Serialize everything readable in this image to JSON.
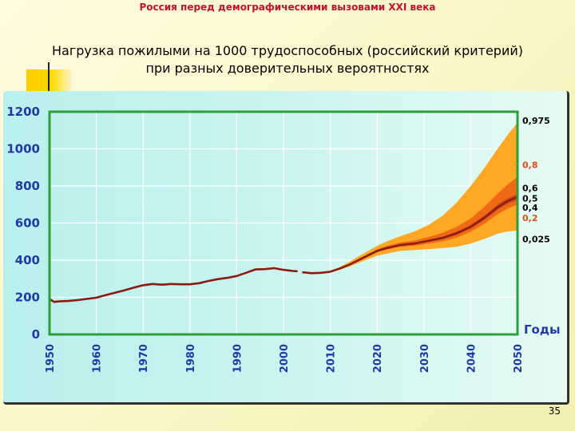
{
  "header": {
    "text": "Россия перед демографическими вызовами XXI века",
    "color": "#c8102e"
  },
  "title": {
    "line1": "Нагрузка пожилыми  на 1000 трудоспособных (российский критерий)",
    "line2": "при разных доверительных вероятностях"
  },
  "page_number": "35",
  "chart_data": {
    "type": "area",
    "xlabel": "Годы",
    "ylabel": "",
    "xlim": [
      1950,
      2050
    ],
    "ylim": [
      0,
      1200
    ],
    "yticks": [
      0,
      200,
      400,
      600,
      800,
      1000,
      1200
    ],
    "xticks": [
      1950,
      1960,
      1970,
      1980,
      1990,
      2000,
      2010,
      2020,
      2030,
      2040,
      2050
    ],
    "grid": true,
    "colors": {
      "line": "#8b1a10",
      "frame": "#2e9e3a",
      "bands": [
        "#ffa826",
        "#fb8014",
        "#f06a16",
        "#cf4a1a",
        "#8b1e10"
      ]
    },
    "historical": {
      "x": [
        1950,
        1951,
        1952,
        1954,
        1956,
        1958,
        1960,
        1962,
        1964,
        1966,
        1968,
        1970,
        1972,
        1974,
        1976,
        1978,
        1980,
        1982,
        1984,
        1986,
        1988,
        1990,
        1992,
        1994,
        1996,
        1998,
        2000,
        2002,
        2003
      ],
      "y": [
        190,
        175,
        178,
        180,
        185,
        192,
        198,
        212,
        225,
        238,
        252,
        265,
        272,
        268,
        272,
        270,
        270,
        276,
        288,
        298,
        305,
        315,
        332,
        350,
        352,
        357,
        348,
        342,
        340
      ]
    },
    "projection": {
      "x": [
        2004,
        2006,
        2008,
        2010,
        2012,
        2014,
        2016,
        2018,
        2020,
        2022,
        2025,
        2028,
        2031,
        2034,
        2037,
        2040,
        2043,
        2046,
        2048,
        2050
      ],
      "median": [
        335,
        330,
        332,
        338,
        355,
        375,
        400,
        425,
        450,
        465,
        482,
        490,
        505,
        520,
        545,
        580,
        630,
        690,
        720,
        740
      ]
    },
    "bands": [
      {
        "lower": "0,025",
        "upper": "0,975",
        "lo": [
          335,
          330,
          332,
          335,
          348,
          365,
          385,
          405,
          425,
          435,
          450,
          455,
          460,
          465,
          472,
          490,
          515,
          545,
          555,
          560
        ],
        "hi": [
          335,
          330,
          332,
          340,
          362,
          390,
          420,
          448,
          478,
          500,
          530,
          555,
          590,
          640,
          710,
          800,
          900,
          1010,
          1080,
          1140
        ]
      },
      {
        "lower": "0,2",
        "upper": "0,8",
        "lo": [
          335,
          330,
          332,
          337,
          353,
          372,
          396,
          420,
          444,
          457,
          472,
          478,
          490,
          502,
          522,
          553,
          598,
          652,
          680,
          700
        ],
        "hi": [
          335,
          330,
          332,
          339,
          358,
          380,
          406,
          432,
          458,
          476,
          496,
          506,
          525,
          547,
          580,
          625,
          690,
          765,
          810,
          850
        ]
      },
      {
        "lower": "0,4",
        "upper": "0,6",
        "lo": [
          335,
          330,
          332,
          338,
          355,
          374,
          399,
          423,
          448,
          462,
          478,
          486,
          500,
          514,
          537,
          570,
          618,
          676,
          705,
          725
        ],
        "hi": [
          335,
          330,
          332,
          338,
          356,
          377,
          402,
          428,
          453,
          469,
          487,
          495,
          511,
          527,
          554,
          591,
          643,
          706,
          737,
          758
        ]
      }
    ],
    "right_labels": [
      {
        "text": "0,975",
        "y": 1152,
        "color": "black"
      },
      {
        "text": "0,8",
        "y": 915,
        "color": "orange"
      },
      {
        "text": "0,6",
        "y": 790,
        "color": "black"
      },
      {
        "text": "0,5",
        "y": 733,
        "color": "black"
      },
      {
        "text": "0,4",
        "y": 683,
        "color": "black"
      },
      {
        "text": "0,2",
        "y": 628,
        "color": "orange"
      },
      {
        "text": "0,025",
        "y": 515,
        "color": "black"
      }
    ]
  }
}
